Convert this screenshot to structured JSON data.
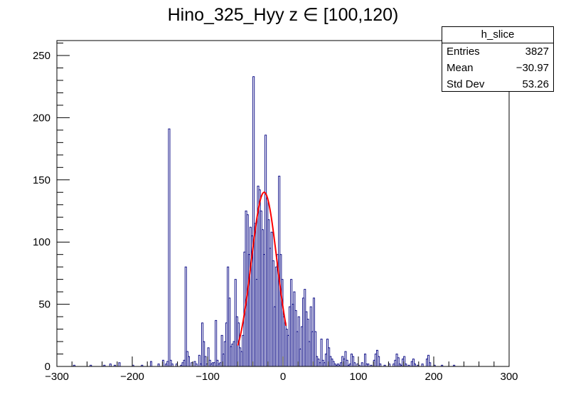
{
  "chart_data": {
    "type": "histogram",
    "title": "Hino_325_Hyy z  ∈ [100,120)",
    "xlim": [
      -300,
      300
    ],
    "ylim": [
      0,
      262
    ],
    "xticks": [
      -300,
      -200,
      -100,
      0,
      100,
      200,
      300
    ],
    "yticks": [
      0,
      50,
      100,
      150,
      200,
      250
    ],
    "bin_width": 2,
    "histogram_color": "#000080",
    "bins": [
      [
        -278,
        1
      ],
      [
        -256,
        1
      ],
      [
        -238,
        1
      ],
      [
        -230,
        2
      ],
      [
        -224,
        1
      ],
      [
        -218,
        3
      ],
      [
        -200,
        1
      ],
      [
        -188,
        1
      ],
      [
        -176,
        4
      ],
      [
        -166,
        2
      ],
      [
        -160,
        5
      ],
      [
        -156,
        2
      ],
      [
        -154,
        4
      ],
      [
        -152,
        191
      ],
      [
        -150,
        5
      ],
      [
        -148,
        2
      ],
      [
        -142,
        2
      ],
      [
        -136,
        1
      ],
      [
        -134,
        3
      ],
      [
        -132,
        5
      ],
      [
        -130,
        80
      ],
      [
        -128,
        12
      ],
      [
        -126,
        8
      ],
      [
        -122,
        3
      ],
      [
        -118,
        4
      ],
      [
        -116,
        2
      ],
      [
        -112,
        9
      ],
      [
        -110,
        2
      ],
      [
        -108,
        35
      ],
      [
        -106,
        20
      ],
      [
        -104,
        8
      ],
      [
        -102,
        2
      ],
      [
        -100,
        15
      ],
      [
        -98,
        5
      ],
      [
        -96,
        2
      ],
      [
        -94,
        3
      ],
      [
        -92,
        3
      ],
      [
        -90,
        37
      ],
      [
        -88,
        5
      ],
      [
        -86,
        2
      ],
      [
        -84,
        3
      ],
      [
        -82,
        25
      ],
      [
        -80,
        10
      ],
      [
        -78,
        20
      ],
      [
        -76,
        35
      ],
      [
        -74,
        80
      ],
      [
        -72,
        55
      ],
      [
        -70,
        16
      ],
      [
        -68,
        18
      ],
      [
        -66,
        20
      ],
      [
        -64,
        70
      ],
      [
        -62,
        40
      ],
      [
        -60,
        35
      ],
      [
        -58,
        15
      ],
      [
        -56,
        12
      ],
      [
        -54,
        25
      ],
      [
        -52,
        92
      ],
      [
        -50,
        125
      ],
      [
        -48,
        122
      ],
      [
        -46,
        90
      ],
      [
        -44,
        112
      ],
      [
        -42,
        105
      ],
      [
        -40,
        233
      ],
      [
        -38,
        115
      ],
      [
        -36,
        70
      ],
      [
        -34,
        145
      ],
      [
        -32,
        142
      ],
      [
        -30,
        125
      ],
      [
        -28,
        110
      ],
      [
        -26,
        90
      ],
      [
        -24,
        186
      ],
      [
        -22,
        135
      ],
      [
        -20,
        118
      ],
      [
        -18,
        95
      ],
      [
        -16,
        108
      ],
      [
        -14,
        85
      ],
      [
        -12,
        48
      ],
      [
        -10,
        80
      ],
      [
        -8,
        90
      ],
      [
        -6,
        153
      ],
      [
        -4,
        90
      ],
      [
        -2,
        70
      ],
      [
        0,
        40
      ],
      [
        2,
        35
      ],
      [
        4,
        30
      ],
      [
        6,
        25
      ],
      [
        8,
        48
      ],
      [
        10,
        70
      ],
      [
        12,
        50
      ],
      [
        14,
        60
      ],
      [
        16,
        45
      ],
      [
        18,
        28
      ],
      [
        20,
        40
      ],
      [
        22,
        14
      ],
      [
        24,
        32
      ],
      [
        26,
        55
      ],
      [
        28,
        62
      ],
      [
        30,
        44
      ],
      [
        32,
        38
      ],
      [
        34,
        20
      ],
      [
        36,
        48
      ],
      [
        38,
        28
      ],
      [
        40,
        55
      ],
      [
        42,
        28
      ],
      [
        44,
        8
      ],
      [
        46,
        6
      ],
      [
        48,
        3
      ],
      [
        50,
        22
      ],
      [
        52,
        5
      ],
      [
        54,
        3
      ],
      [
        56,
        10
      ],
      [
        58,
        22
      ],
      [
        60,
        15
      ],
      [
        62,
        8
      ],
      [
        64,
        6
      ],
      [
        66,
        4
      ],
      [
        68,
        2
      ],
      [
        70,
        1
      ],
      [
        72,
        2
      ],
      [
        74,
        1
      ],
      [
        76,
        3
      ],
      [
        78,
        8
      ],
      [
        80,
        6
      ],
      [
        82,
        12
      ],
      [
        84,
        5
      ],
      [
        86,
        1
      ],
      [
        88,
        2
      ],
      [
        90,
        10
      ],
      [
        92,
        8
      ],
      [
        94,
        3
      ],
      [
        98,
        2
      ],
      [
        100,
        1
      ],
      [
        104,
        3
      ],
      [
        108,
        10
      ],
      [
        110,
        2
      ],
      [
        112,
        2
      ],
      [
        116,
        1
      ],
      [
        120,
        5
      ],
      [
        122,
        10
      ],
      [
        124,
        13
      ],
      [
        126,
        8
      ],
      [
        128,
        2
      ],
      [
        134,
        1
      ],
      [
        140,
        2
      ],
      [
        146,
        2
      ],
      [
        148,
        5
      ],
      [
        150,
        10
      ],
      [
        152,
        7
      ],
      [
        154,
        2
      ],
      [
        156,
        1
      ],
      [
        158,
        6
      ],
      [
        160,
        8
      ],
      [
        162,
        2
      ],
      [
        166,
        1
      ],
      [
        170,
        4
      ],
      [
        172,
        6
      ],
      [
        174,
        2
      ],
      [
        178,
        1
      ],
      [
        184,
        2
      ],
      [
        190,
        6
      ],
      [
        192,
        9
      ],
      [
        194,
        3
      ],
      [
        200,
        1
      ],
      [
        210,
        1
      ],
      [
        226,
        1
      ]
    ],
    "fit": {
      "type": "gaussian",
      "color": "#ff0000",
      "amplitude": 140,
      "mean": -25,
      "sigma": 17,
      "x_range": [
        -60,
        4
      ]
    },
    "stats_box": {
      "title": "h_slice",
      "rows": [
        {
          "label": "Entries",
          "value": "3827"
        },
        {
          "label": "Mean",
          "value": "−30.97"
        },
        {
          "label": "Std Dev",
          "value": "53.26"
        }
      ]
    }
  }
}
